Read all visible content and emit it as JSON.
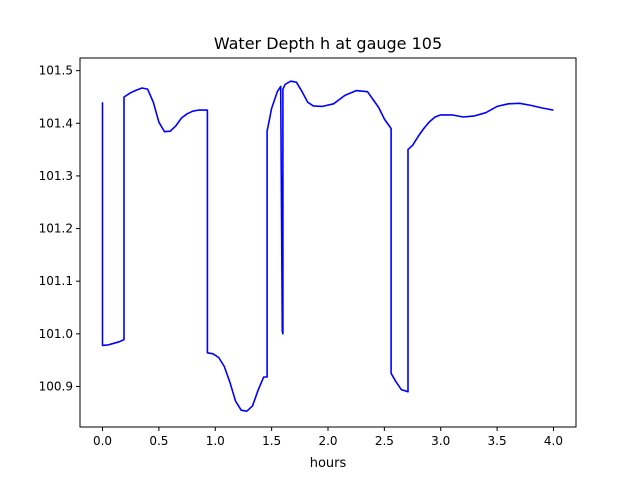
{
  "chart_data": {
    "type": "line",
    "title": "Water Depth h at gauge 105",
    "xlabel": "hours",
    "ylabel": "",
    "xlim": [
      -0.2,
      4.2
    ],
    "ylim": [
      100.823,
      101.524
    ],
    "x_ticks": [
      0.0,
      0.5,
      1.0,
      1.5,
      2.0,
      2.5,
      3.0,
      3.5,
      4.0
    ],
    "x_tick_labels": [
      "0.0",
      "0.5",
      "1.0",
      "1.5",
      "2.0",
      "2.5",
      "3.0",
      "3.5",
      "4.0"
    ],
    "y_ticks": [
      100.9,
      101.0,
      101.1,
      101.2,
      101.3,
      101.4,
      101.5
    ],
    "y_tick_labels": [
      "100.9",
      "101.0",
      "101.1",
      "101.2",
      "101.3",
      "101.4",
      "101.5"
    ],
    "grid": false,
    "series": [
      {
        "color": "#0000ff",
        "x": [
          0.0,
          0.0,
          0.05,
          0.1,
          0.15,
          0.19,
          0.19,
          0.25,
          0.3,
          0.35,
          0.4,
          0.45,
          0.5,
          0.55,
          0.6,
          0.65,
          0.7,
          0.75,
          0.8,
          0.85,
          0.93,
          0.93,
          0.98,
          1.03,
          1.08,
          1.13,
          1.18,
          1.23,
          1.28,
          1.33,
          1.38,
          1.43,
          1.46,
          1.46,
          1.5,
          1.55,
          1.58,
          1.595,
          1.6,
          1.6,
          1.62,
          1.67,
          1.72,
          1.77,
          1.82,
          1.87,
          1.95,
          2.05,
          2.15,
          2.25,
          2.35,
          2.45,
          2.5,
          2.56,
          2.56,
          2.6,
          2.65,
          2.71,
          2.71,
          2.75,
          2.8,
          2.85,
          2.9,
          2.95,
          3.0,
          3.1,
          3.2,
          3.3,
          3.4,
          3.5,
          3.6,
          3.7,
          3.8,
          3.9,
          4.0
        ],
        "y": [
          101.44,
          100.978,
          100.979,
          100.982,
          100.985,
          100.989,
          101.45,
          101.458,
          101.463,
          101.467,
          101.465,
          101.44,
          101.402,
          101.384,
          101.385,
          101.395,
          101.41,
          101.418,
          101.423,
          101.425,
          101.425,
          100.964,
          100.962,
          100.955,
          100.938,
          100.908,
          100.872,
          100.855,
          100.853,
          100.863,
          100.893,
          100.918,
          100.918,
          101.385,
          101.428,
          101.46,
          101.47,
          101.005,
          101.0,
          101.465,
          101.474,
          101.48,
          101.478,
          101.46,
          101.44,
          101.433,
          101.432,
          101.437,
          101.453,
          101.462,
          101.46,
          101.43,
          101.408,
          101.39,
          100.925,
          100.91,
          100.894,
          100.89,
          101.35,
          101.358,
          101.375,
          101.39,
          101.403,
          101.412,
          101.416,
          101.416,
          101.412,
          101.414,
          101.42,
          101.432,
          101.437,
          101.438,
          101.434,
          101.429,
          101.425
        ]
      }
    ]
  }
}
